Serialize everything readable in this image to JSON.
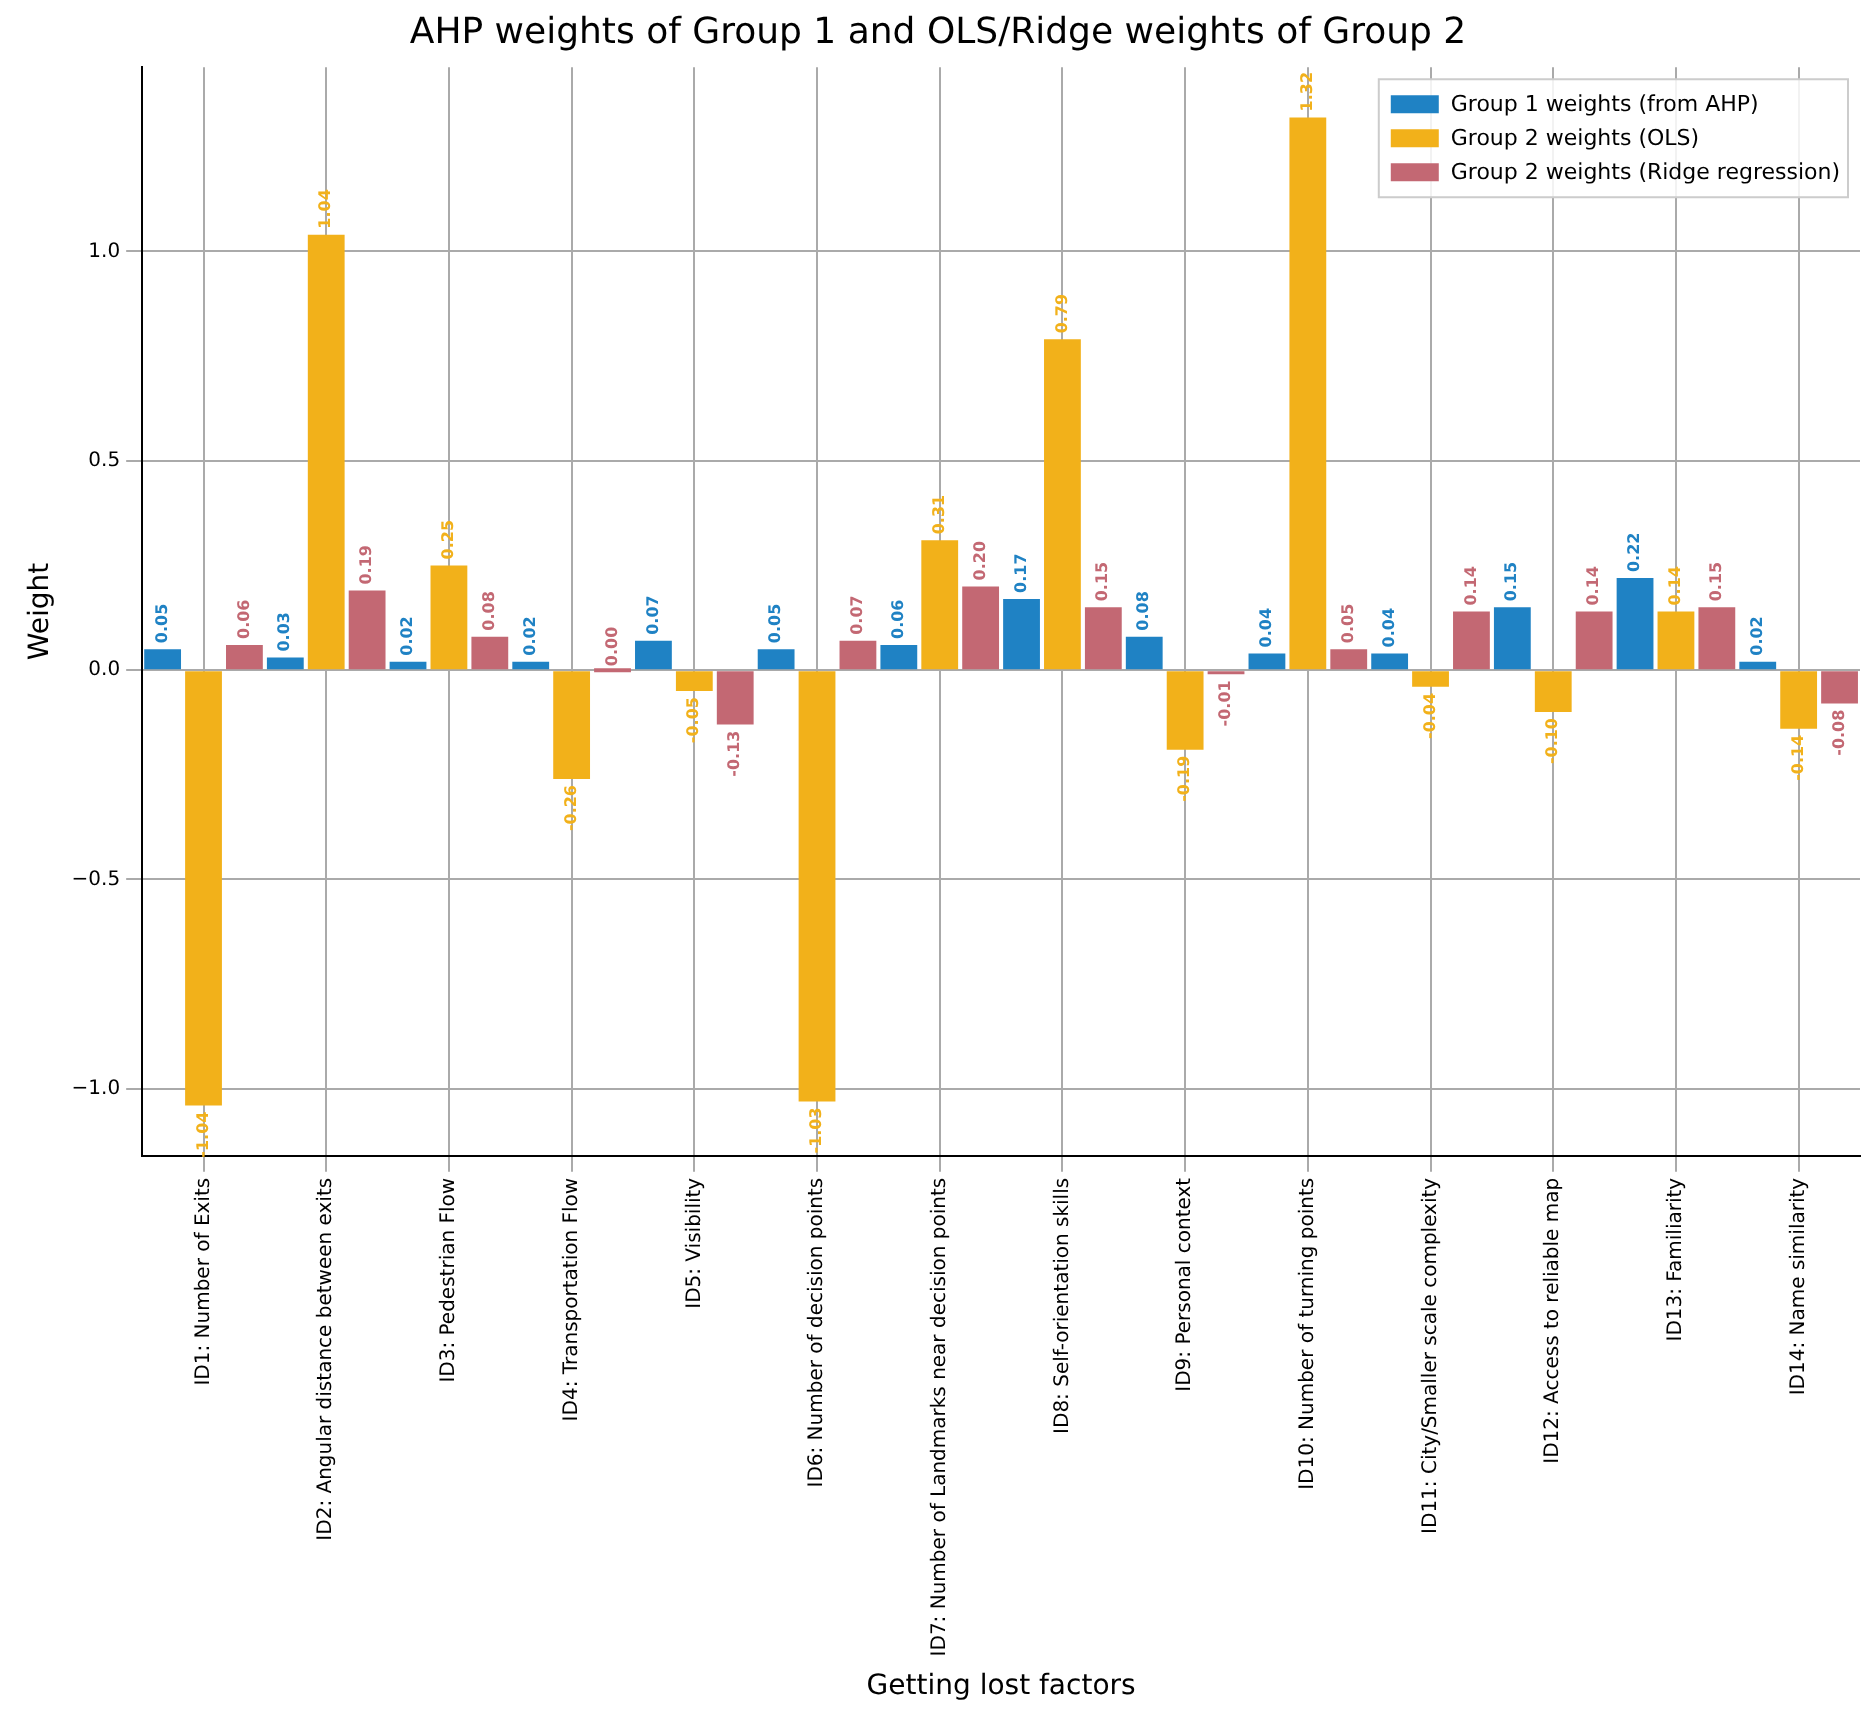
{
  "chart_data": {
    "type": "bar",
    "title": "AHP weights of Group 1 and OLS/Ridge weights of Group 2",
    "xlabel": "Getting lost factors",
    "ylabel": "Weight",
    "categories": [
      "ID1: Number of Exits",
      "ID2: Angular distance between exits",
      "ID3: Pedestrian Flow",
      "ID4: Transportation Flow",
      "ID5: Visibility",
      "ID6: Number of decision points",
      "ID7: Number of Landmarks near decision points",
      "ID8: Self-orientation skills",
      "ID9: Personal context",
      "ID10: Number of turning points",
      "ID11: City/Smaller scale complexity",
      "ID12: Access to reliable map",
      "ID13: Familiarity",
      "ID14: Name similarity"
    ],
    "series": [
      {
        "name": "Group 1 weights (from AHP)",
        "color": "#1f82c4",
        "values": [
          0.05,
          0.03,
          0.02,
          0.02,
          0.07,
          0.05,
          0.06,
          0.17,
          0.08,
          0.04,
          0.04,
          0.15,
          0.22,
          0.02
        ],
        "value_labels": [
          "0.05",
          "0.03",
          "0.02",
          "0.02",
          "0.07",
          "0.05",
          "0.06",
          "0.17",
          "0.08",
          "0.04",
          "0.04",
          "0.15",
          "0.22",
          "0.02"
        ]
      },
      {
        "name": "Group 2 weights (OLS)",
        "color": "#f2b11a",
        "values": [
          -1.04,
          1.04,
          0.25,
          -0.26,
          -0.05,
          -1.03,
          0.31,
          0.79,
          -0.19,
          1.32,
          -0.04,
          -0.1,
          0.14,
          -0.14
        ],
        "value_labels": [
          "-1.04",
          "1.04",
          "0.25",
          "-0.26",
          "-0.05",
          "-1.03",
          "0.31",
          "0.79",
          "-0.19",
          "1.32",
          "-0.04",
          "-0.10",
          "0.14",
          "-0.14"
        ]
      },
      {
        "name": "Group 2 weights (Ridge regression)",
        "color": "#c36873",
        "values": [
          0.06,
          0.19,
          0.08,
          0.0,
          -0.13,
          0.07,
          0.2,
          0.15,
          -0.01,
          0.05,
          0.14,
          0.14,
          0.15,
          -0.08
        ],
        "value_labels": [
          "0.06",
          "0.19",
          "0.08",
          "0.00",
          "-0.13",
          "0.07",
          "0.20",
          "0.15",
          "-0.01",
          "0.05",
          "0.14",
          "0.14",
          "0.15",
          "-0.08"
        ]
      }
    ],
    "ylim": [
      -1.16,
      1.44
    ],
    "yticks": [
      {
        "value": -1.0,
        "label": "−1.0"
      },
      {
        "value": -0.5,
        "label": "−0.5"
      },
      {
        "value": 0.0,
        "label": "0.0"
      },
      {
        "value": 0.5,
        "label": "0.5"
      },
      {
        "value": 1.0,
        "label": "1.0"
      }
    ],
    "grid": true,
    "legend": "top right"
  }
}
